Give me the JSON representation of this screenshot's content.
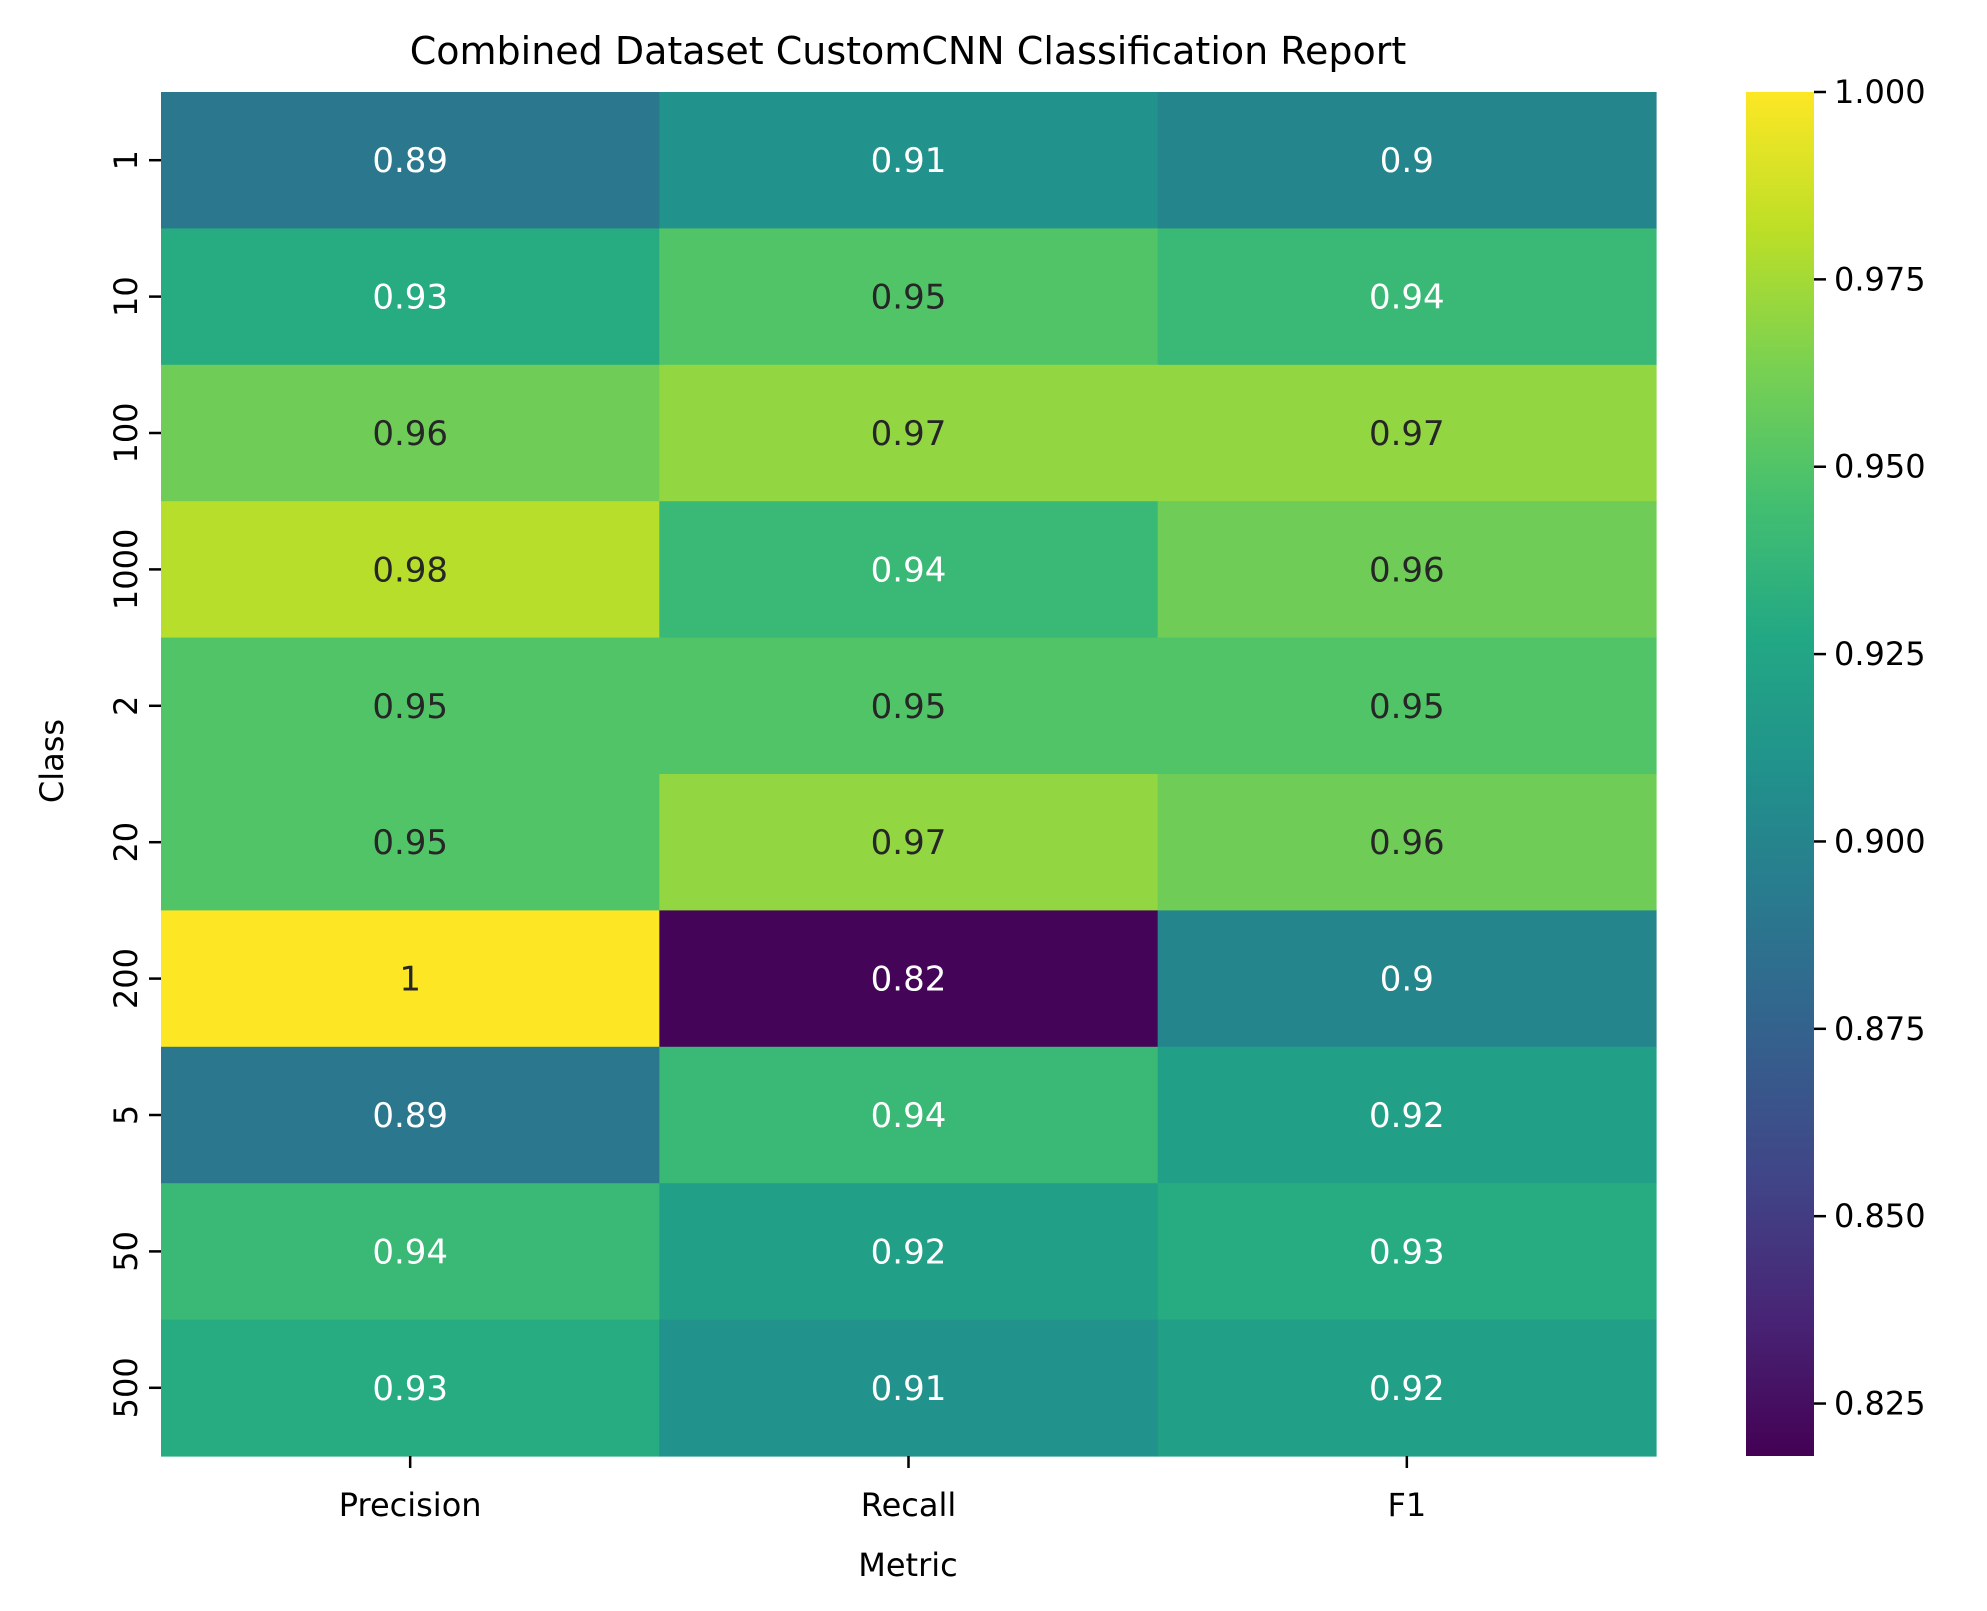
{
  "chart_data": {
    "type": "heatmap",
    "title": "Combined Dataset CustomCNN Classification Report",
    "xlabel": "Metric",
    "ylabel": "Class",
    "x_categories": [
      "Precision",
      "Recall",
      "F1"
    ],
    "y_categories": [
      "1",
      "10",
      "100",
      "1000",
      "2",
      "20",
      "200",
      "5",
      "50",
      "500"
    ],
    "values": [
      [
        0.89,
        0.91,
        0.9
      ],
      [
        0.93,
        0.95,
        0.94
      ],
      [
        0.96,
        0.97,
        0.97
      ],
      [
        0.98,
        0.94,
        0.96
      ],
      [
        0.95,
        0.95,
        0.95
      ],
      [
        0.95,
        0.97,
        0.96
      ],
      [
        1.0,
        0.82,
        0.9
      ],
      [
        0.89,
        0.94,
        0.92
      ],
      [
        0.94,
        0.92,
        0.93
      ],
      [
        0.93,
        0.91,
        0.92
      ]
    ],
    "labels": [
      [
        "0.89",
        "0.91",
        "0.9"
      ],
      [
        "0.93",
        "0.95",
        "0.94"
      ],
      [
        "0.96",
        "0.97",
        "0.97"
      ],
      [
        "0.98",
        "0.94",
        "0.96"
      ],
      [
        "0.95",
        "0.95",
        "0.95"
      ],
      [
        "0.95",
        "0.97",
        "0.96"
      ],
      [
        "1",
        "0.82",
        "0.9"
      ],
      [
        "0.89",
        "0.94",
        "0.92"
      ],
      [
        "0.94",
        "0.92",
        "0.93"
      ],
      [
        "0.93",
        "0.91",
        "0.92"
      ]
    ],
    "colormap": "viridis",
    "vmin": 0.818,
    "vmax": 1.0,
    "colorbar_ticks": [
      0.825,
      0.85,
      0.875,
      0.9,
      0.925,
      0.95,
      0.975,
      1.0
    ],
    "colorbar_tick_labels": [
      "0.825",
      "0.850",
      "0.875",
      "0.900",
      "0.925",
      "0.950",
      "0.975",
      "1.000"
    ],
    "grid": false,
    "legend": "colorbar-right"
  },
  "colors": {
    "annotation_light": "#ffffff",
    "annotation_dark": "#262626",
    "axis": "#000000"
  }
}
